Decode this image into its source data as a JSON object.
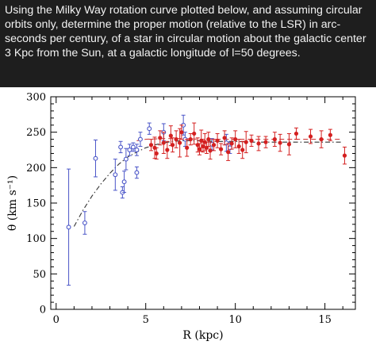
{
  "question": "Using the Milky Way rotation curve plotted below, and assuming circular orbits only, determine the proper motion (relative to the LSR) in arc-seconds per century, of a star in circular motion about the galactic center 3 Kpc from the Sun, at a galactic longitude of l=50 degrees.",
  "chart_data": {
    "type": "scatter",
    "title": "",
    "xlabel": "R (kpc)",
    "ylabel": "θ (km s⁻¹)",
    "xlim": [
      -0.3,
      16.7
    ],
    "ylim": [
      0,
      300
    ],
    "xticks": [
      0,
      5,
      10,
      15
    ],
    "yticks": [
      0,
      50,
      100,
      150,
      200,
      250,
      300
    ],
    "colors": {
      "blue": "#4a55c8",
      "red": "#d42020",
      "curve_red": "#d04040",
      "curve_dark": "#333333"
    },
    "series": [
      {
        "marker": "open-circle",
        "color": "#4a55c8",
        "points": [
          {
            "x": 0.7,
            "y": 116,
            "err": 82
          },
          {
            "x": 1.6,
            "y": 122,
            "err": 16
          },
          {
            "x": 2.2,
            "y": 213,
            "err": 26
          },
          {
            "x": 3.3,
            "y": 190,
            "err": 22
          },
          {
            "x": 3.6,
            "y": 229,
            "err": 8
          },
          {
            "x": 3.7,
            "y": 165,
            "err": 8
          },
          {
            "x": 3.8,
            "y": 180,
            "err": 15
          },
          {
            "x": 3.9,
            "y": 212,
            "err": 15
          },
          {
            "x": 4.1,
            "y": 225,
            "err": 8
          },
          {
            "x": 4.3,
            "y": 229,
            "err": 6
          },
          {
            "x": 4.5,
            "y": 225,
            "err": 8
          },
          {
            "x": 4.5,
            "y": 193,
            "err": 8
          },
          {
            "x": 4.7,
            "y": 240,
            "err": 10
          },
          {
            "x": 5.2,
            "y": 255,
            "err": 8
          },
          {
            "x": 6.0,
            "y": 250,
            "err": 12
          },
          {
            "x": 7.1,
            "y": 260,
            "err": 14
          },
          {
            "x": 7.2,
            "y": 240,
            "err": 10
          },
          {
            "x": 8.7,
            "y": 233,
            "err": 8
          },
          {
            "x": 9.5,
            "y": 235,
            "err": 12
          },
          {
            "x": 9.7,
            "y": 228,
            "err": 8
          }
        ]
      },
      {
        "marker": "filled-circle",
        "color": "#d42020",
        "points": [
          {
            "x": 5.3,
            "y": 232,
            "err": 8
          },
          {
            "x": 5.5,
            "y": 228,
            "err": 15
          },
          {
            "x": 5.6,
            "y": 220,
            "err": 8
          },
          {
            "x": 5.8,
            "y": 242,
            "err": 10
          },
          {
            "x": 6.0,
            "y": 235,
            "err": 15
          },
          {
            "x": 6.2,
            "y": 225,
            "err": 12
          },
          {
            "x": 6.4,
            "y": 245,
            "err": 14
          },
          {
            "x": 6.5,
            "y": 232,
            "err": 10
          },
          {
            "x": 6.7,
            "y": 240,
            "err": 12
          },
          {
            "x": 6.9,
            "y": 235,
            "err": 20
          },
          {
            "x": 7.0,
            "y": 250,
            "err": 10
          },
          {
            "x": 7.3,
            "y": 228,
            "err": 12
          },
          {
            "x": 7.5,
            "y": 240,
            "err": 8
          },
          {
            "x": 7.7,
            "y": 248,
            "err": 15
          },
          {
            "x": 7.9,
            "y": 232,
            "err": 10
          },
          {
            "x": 8.0,
            "y": 226,
            "err": 8
          },
          {
            "x": 8.1,
            "y": 238,
            "err": 15
          },
          {
            "x": 8.2,
            "y": 230,
            "err": 8
          },
          {
            "x": 8.3,
            "y": 236,
            "err": 12
          },
          {
            "x": 8.4,
            "y": 228,
            "err": 8
          },
          {
            "x": 8.5,
            "y": 240,
            "err": 10
          },
          {
            "x": 8.6,
            "y": 224,
            "err": 12
          },
          {
            "x": 8.8,
            "y": 232,
            "err": 8
          },
          {
            "x": 9.0,
            "y": 238,
            "err": 10
          },
          {
            "x": 9.2,
            "y": 226,
            "err": 8
          },
          {
            "x": 9.4,
            "y": 242,
            "err": 10
          },
          {
            "x": 9.6,
            "y": 222,
            "err": 12
          },
          {
            "x": 9.8,
            "y": 234,
            "err": 8
          },
          {
            "x": 10.0,
            "y": 240,
            "err": 12
          },
          {
            "x": 10.2,
            "y": 230,
            "err": 10
          },
          {
            "x": 10.4,
            "y": 225,
            "err": 12
          },
          {
            "x": 10.6,
            "y": 236,
            "err": 15
          },
          {
            "x": 10.9,
            "y": 238,
            "err": 8
          },
          {
            "x": 11.3,
            "y": 234,
            "err": 10
          },
          {
            "x": 11.7,
            "y": 236,
            "err": 8
          },
          {
            "x": 12.2,
            "y": 240,
            "err": 10
          },
          {
            "x": 12.5,
            "y": 235,
            "err": 12
          },
          {
            "x": 13.0,
            "y": 233,
            "err": 15
          },
          {
            "x": 13.4,
            "y": 248,
            "err": 8
          },
          {
            "x": 14.2,
            "y": 244,
            "err": 10
          },
          {
            "x": 14.8,
            "y": 240,
            "err": 12
          },
          {
            "x": 15.3,
            "y": 246,
            "err": 8
          },
          {
            "x": 16.1,
            "y": 217,
            "err": 12
          }
        ]
      }
    ],
    "curves": [
      {
        "style": "dash-dot",
        "color": "#333333",
        "x": [
          1.0,
          1.5,
          2.0,
          2.5,
          3.0,
          3.5,
          4.0,
          4.5,
          5.0,
          5.5,
          6.0,
          6.5,
          7.0,
          8.0,
          9.0,
          10.0,
          11.0,
          12.0,
          13.0,
          14.0,
          15.0,
          16.0
        ],
        "y": [
          117,
          140,
          160,
          177,
          192,
          205,
          215,
          222,
          228,
          232,
          235,
          237,
          238,
          238,
          237,
          237,
          236,
          236,
          236,
          236,
          236,
          236
        ]
      },
      {
        "style": "dashed",
        "color": "#d04040",
        "x": [
          4.5,
          5.0,
          6.0,
          7.0,
          8.0,
          9.0,
          10.0,
          11.0,
          12.0,
          13.0,
          14.0,
          15.0,
          16.0
        ],
        "y": [
          238,
          240,
          241,
          241,
          240,
          240,
          240,
          240,
          240,
          240,
          240,
          240,
          240
        ]
      }
    ]
  }
}
